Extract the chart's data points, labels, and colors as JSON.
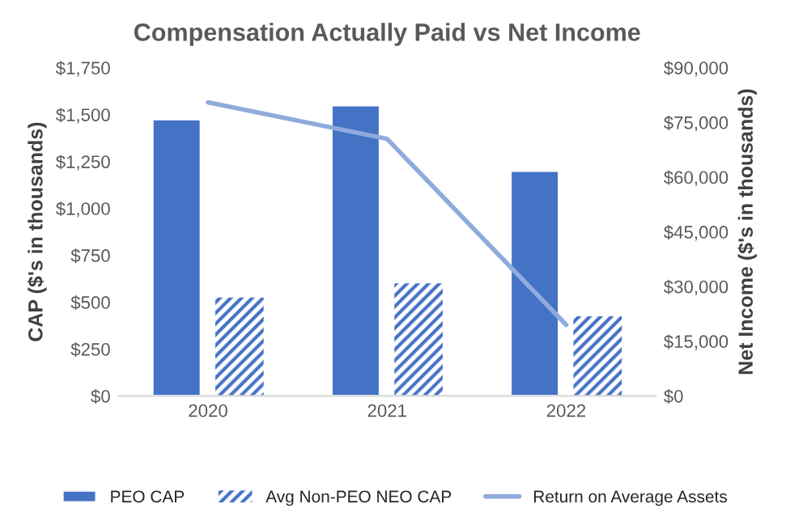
{
  "chart_data": {
    "type": "bar",
    "title": "Compensation Actually Paid vs Net Income",
    "categories": [
      "2020",
      "2021",
      "2022"
    ],
    "ylabel": "CAP ($'s in thousands)",
    "y2label": "Net Income ($'s in thousands)",
    "series": [
      {
        "name": "PEO CAP",
        "color": "#4472c4",
        "values": [
          1475,
          1550,
          1200
        ]
      },
      {
        "name": "Avg Non-PEO NEO CAP",
        "color": "#4472c4",
        "values": [
          525,
          600,
          425
        ]
      },
      {
        "name": "Return on Average Assets",
        "type": "line",
        "axis": "y2",
        "color": "#8faadc",
        "values": [
          80500,
          70500,
          19500
        ]
      }
    ],
    "ylim": [
      0,
      1750
    ],
    "yticks": [
      {
        "value": 0,
        "label": "$0"
      },
      {
        "value": 250,
        "label": "$250"
      },
      {
        "value": 500,
        "label": "$500"
      },
      {
        "value": 750,
        "label": "$750"
      },
      {
        "value": 1000,
        "label": "$1,000"
      },
      {
        "value": 1250,
        "label": "$1,250"
      },
      {
        "value": 1500,
        "label": "$1,500"
      },
      {
        "value": 1750,
        "label": "$1,750"
      }
    ],
    "y2lim": [
      0,
      90000
    ],
    "y2ticks": [
      {
        "value": 0,
        "label": "$0"
      },
      {
        "value": 15000,
        "label": "$15,000"
      },
      {
        "value": 30000,
        "label": "$30,000"
      },
      {
        "value": 45000,
        "label": "$45,000"
      },
      {
        "value": 60000,
        "label": "$60,000"
      },
      {
        "value": 75000,
        "label": "$75,000"
      },
      {
        "value": 90000,
        "label": "$90,000"
      }
    ],
    "grid": false,
    "legend": "bottom"
  }
}
